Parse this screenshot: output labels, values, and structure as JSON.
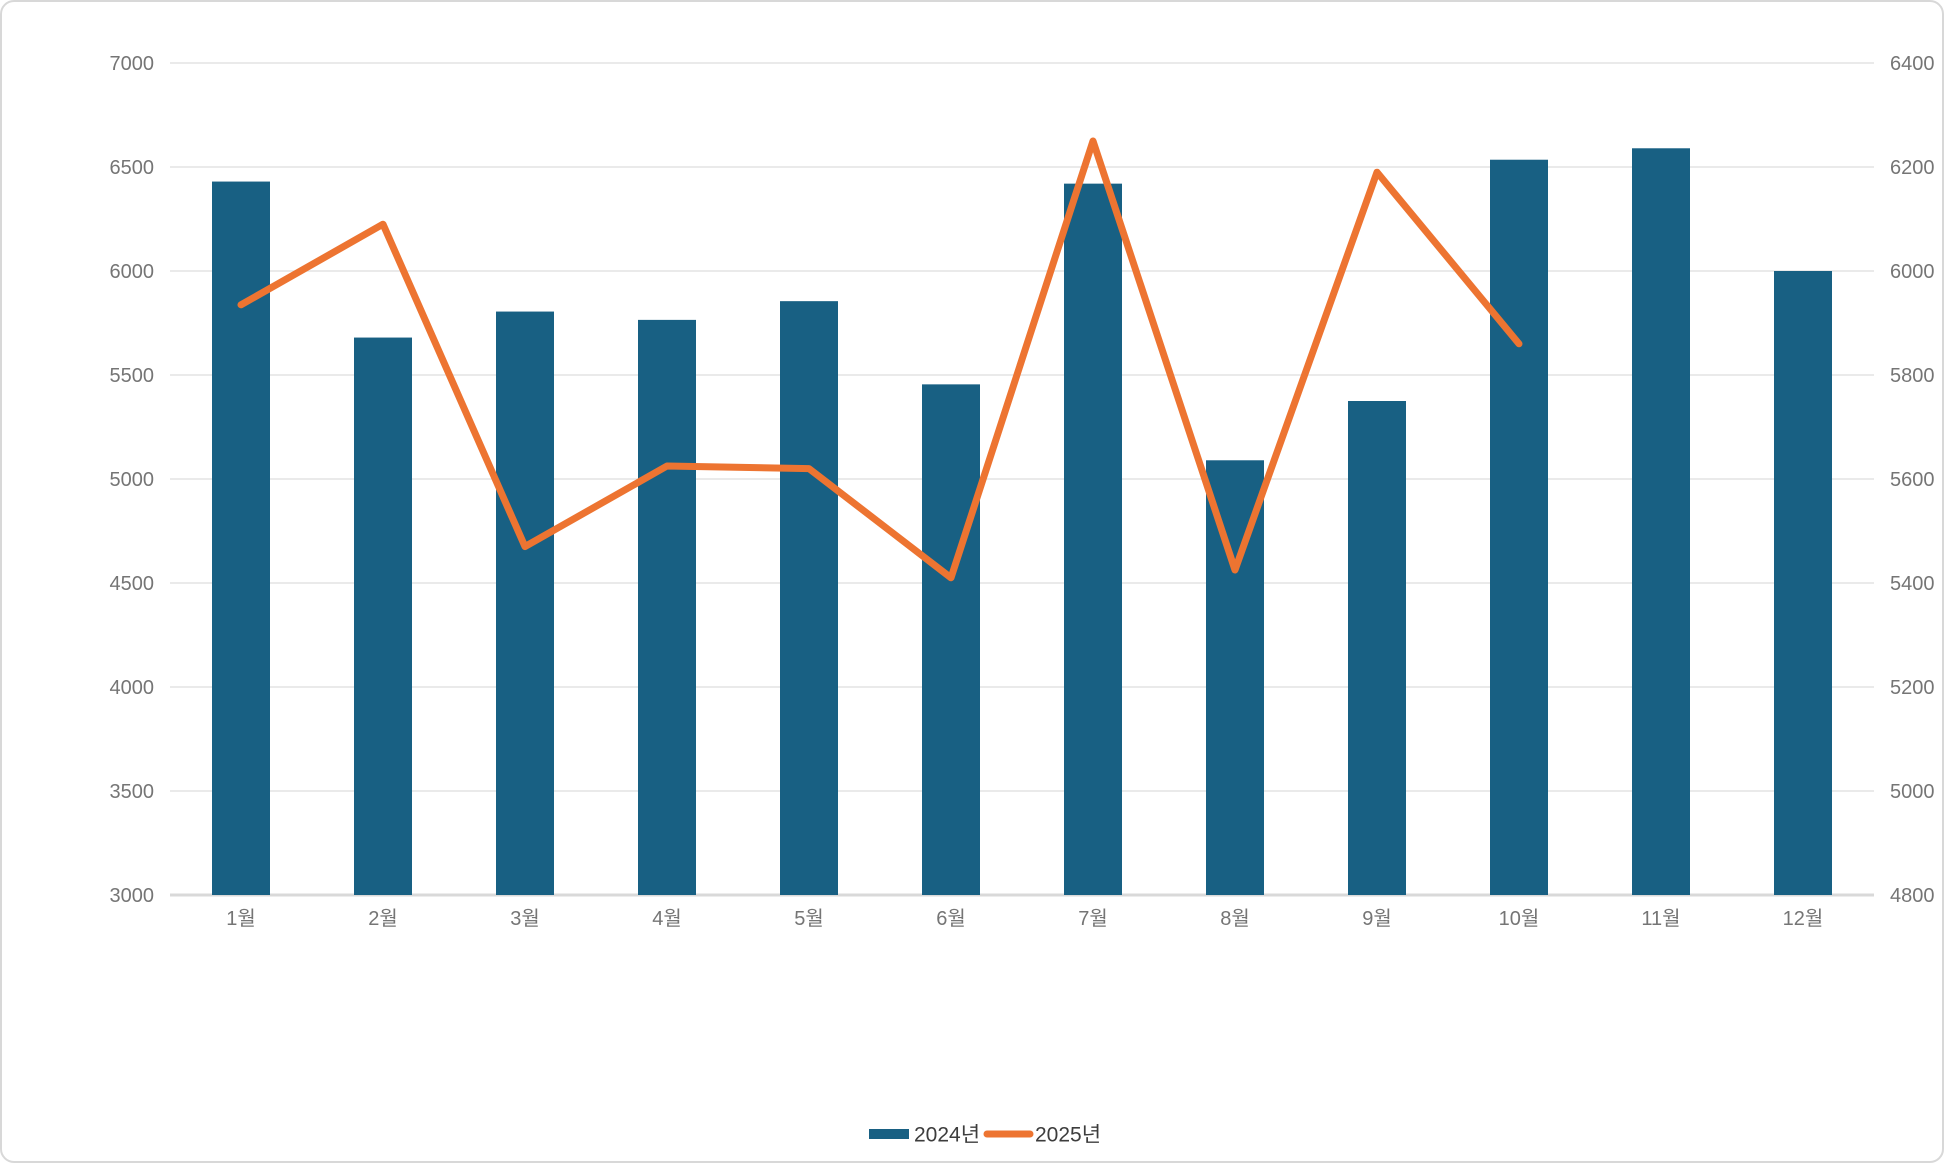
{
  "chart_data": {
    "type": "bar",
    "subtype": "combo-bar-line-dual-axis",
    "title": "",
    "xlabel": "",
    "ylabel": "",
    "categories": [
      "1월",
      "2월",
      "3월",
      "4월",
      "5월",
      "6월",
      "7월",
      "8월",
      "9월",
      "10월",
      "11월",
      "12월"
    ],
    "series": [
      {
        "name": "2024년",
        "type": "bar",
        "axis": "left",
        "color": "#186083",
        "values": [
          6430,
          5680,
          5805,
          5765,
          5855,
          5455,
          6420,
          5090,
          5375,
          6535,
          6590,
          6000
        ]
      },
      {
        "name": "2025년",
        "type": "line",
        "axis": "right",
        "color": "#ED7431",
        "values": [
          5935,
          6090,
          5470,
          5625,
          5620,
          5410,
          6250,
          5425,
          6190,
          5860,
          null,
          null
        ]
      }
    ],
    "left_axis": {
      "min": 3000,
      "max": 7000,
      "step": 500,
      "tick_labels": [
        "3000",
        "3500",
        "4000",
        "4500",
        "5000",
        "5500",
        "6000",
        "6500",
        "7000"
      ]
    },
    "right_axis": {
      "min": 4800,
      "max": 6400,
      "step": 200,
      "tick_labels": [
        "4800",
        "5000",
        "5200",
        "5400",
        "5600",
        "5800",
        "6000",
        "6200",
        "6400"
      ]
    },
    "legend": {
      "position": "bottom-center",
      "items": [
        {
          "label": "2024년",
          "marker": "bar-swatch",
          "color": "#186083"
        },
        {
          "label": "2025년",
          "marker": "line-swatch",
          "color": "#ED7431"
        }
      ]
    },
    "grid": "horizontal-only"
  },
  "colors": {
    "bar": "#186083",
    "line": "#ED7431",
    "gridline": "#E3E3E3",
    "axis_line": "#D9D9D9",
    "tick_text": "#757575",
    "legend_text": "#3D3D3D",
    "background": "#FFFFFF",
    "frame_border": "#D8D8D8"
  }
}
